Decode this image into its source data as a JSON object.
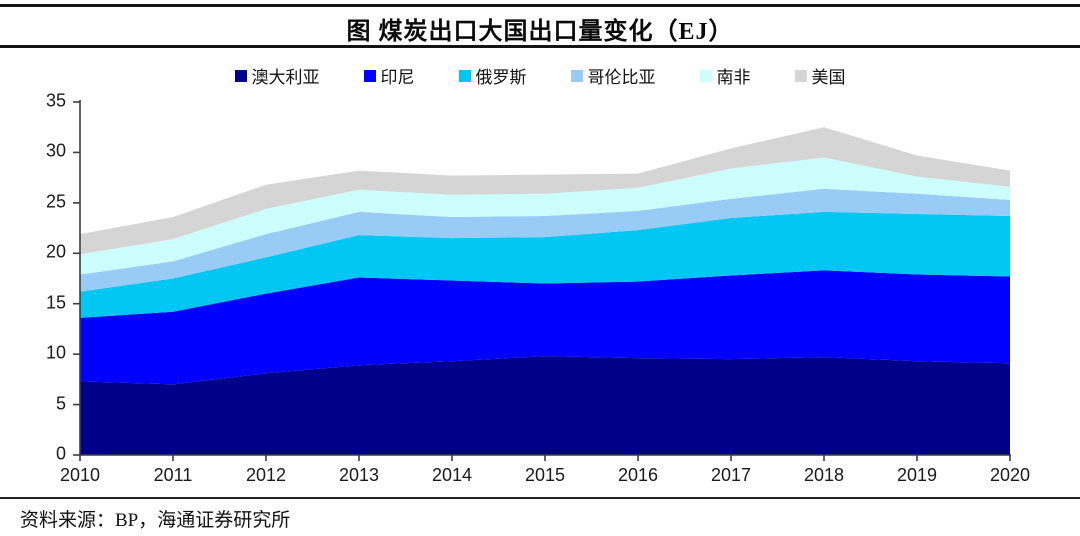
{
  "page": {
    "title": "图 煤炭出口大国出口量变化（EJ）",
    "source": "资料来源：BP，海通证券研究所"
  },
  "chart_data": {
    "type": "area",
    "stacked": true,
    "title": "图 煤炭出口大国出口量变化（EJ）",
    "unit": "EJ",
    "x": [
      2010,
      2011,
      2012,
      2013,
      2014,
      2015,
      2016,
      2017,
      2018,
      2019,
      2020
    ],
    "series": [
      {
        "key": "australia",
        "name": "澳大利亚",
        "color": "#00008B",
        "values": [
          7.3,
          7.0,
          8.1,
          8.9,
          9.3,
          9.8,
          9.6,
          9.5,
          9.7,
          9.3,
          9.1
        ]
      },
      {
        "key": "indonesia",
        "name": "印尼",
        "color": "#0000FE",
        "values": [
          6.3,
          7.2,
          7.9,
          8.7,
          8.0,
          7.2,
          7.6,
          8.3,
          8.6,
          8.6,
          8.6
        ]
      },
      {
        "key": "russia",
        "name": "俄罗斯",
        "color": "#00C6F3",
        "values": [
          2.6,
          3.3,
          3.6,
          4.2,
          4.2,
          4.6,
          5.1,
          5.7,
          5.8,
          6.0,
          6.0
        ]
      },
      {
        "key": "colombia",
        "name": "哥伦比亚",
        "color": "#99CBF7",
        "values": [
          1.7,
          1.7,
          2.3,
          2.3,
          2.1,
          2.1,
          1.9,
          1.9,
          2.3,
          2.0,
          1.6
        ]
      },
      {
        "key": "south-africa",
        "name": "南非",
        "color": "#CCFEFE",
        "values": [
          2.0,
          2.2,
          2.5,
          2.2,
          2.2,
          2.2,
          2.3,
          3.0,
          3.1,
          1.7,
          1.3
        ]
      },
      {
        "key": "usa",
        "name": "美国",
        "color": "#D5D5D5",
        "values": [
          2.0,
          2.2,
          2.4,
          1.9,
          1.9,
          1.9,
          1.4,
          2.0,
          3.0,
          2.1,
          1.6
        ]
      }
    ],
    "xlabel": "",
    "ylabel": "",
    "ylim": [
      0,
      35
    ],
    "yticks": [
      0,
      5,
      10,
      15,
      20,
      25,
      30,
      35
    ],
    "legend_position": "top",
    "grid": false,
    "axis_color": "#3d3d3d"
  }
}
